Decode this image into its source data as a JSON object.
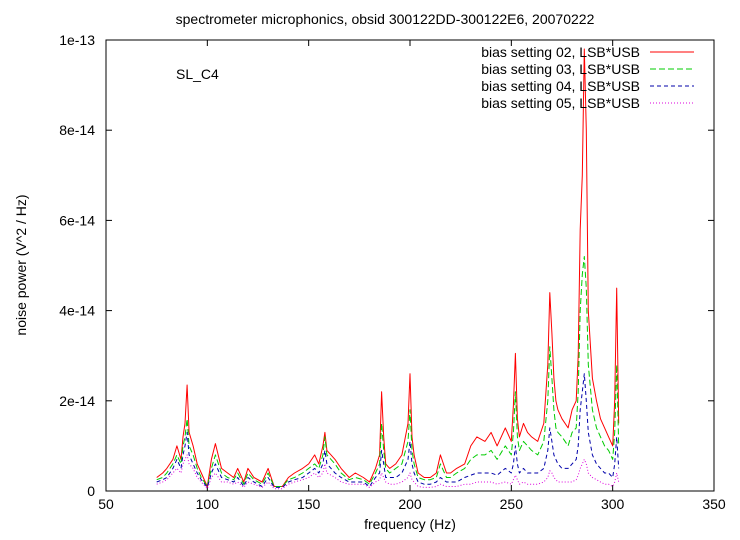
{
  "chart_data": {
    "type": "line",
    "title": "spectrometer microphonics, obsid 300122DD-300122E6, 20070222",
    "xlabel": "frequency (Hz)",
    "ylabel": "noise power (V^2 / Hz)",
    "annotation": "SL_C4",
    "xlim": [
      50,
      350
    ],
    "ylim": [
      0,
      1e-13
    ],
    "xticks": [
      50,
      100,
      150,
      200,
      250,
      300,
      350
    ],
    "xtick_labels": [
      "50",
      "100",
      "150",
      "200",
      "250",
      "300",
      "350"
    ],
    "yticks": [
      0,
      2e-14,
      4e-14,
      6e-14,
      8e-14,
      1e-13
    ],
    "ytick_labels": [
      "0",
      "2e-14",
      "4e-14",
      "6e-14",
      "8e-14",
      "1e-13"
    ],
    "grid": false,
    "legend_position": "top-right",
    "series": [
      {
        "name": "bias setting 02, LSB*USB",
        "color": "#ff0000",
        "dash": "solid",
        "x": [
          75,
          78,
          80,
          83,
          85,
          87,
          88,
          89,
          90,
          91,
          93,
          95,
          97,
          100,
          102,
          104,
          107,
          110,
          113,
          115,
          118,
          120,
          123,
          127,
          130,
          133,
          137,
          140,
          143,
          147,
          150,
          153,
          155,
          157,
          158,
          159,
          161,
          163,
          166,
          170,
          173,
          177,
          180,
          183,
          185,
          186,
          187,
          188,
          190,
          193,
          196,
          199,
          200,
          201,
          202,
          204,
          207,
          210,
          213,
          215,
          218,
          220,
          223,
          227,
          230,
          233,
          237,
          240,
          243,
          247,
          250,
          251,
          252,
          253,
          254,
          256,
          258,
          260,
          263,
          266,
          268,
          269,
          270,
          271,
          272,
          273,
          275,
          278,
          280,
          282,
          283,
          284,
          285,
          286,
          287,
          288,
          290,
          292,
          294,
          296,
          298,
          300,
          301,
          302,
          303
        ],
        "y": [
          3e-15,
          4e-15,
          5e-15,
          7e-15,
          1e-14,
          7e-15,
          1.2e-14,
          1.5e-14,
          2.35e-14,
          1.3e-14,
          1e-14,
          6e-15,
          4e-15,
          1e-15,
          7e-15,
          1.05e-14,
          5e-15,
          4e-15,
          3e-15,
          5e-15,
          2e-15,
          5e-15,
          3e-15,
          2e-15,
          5e-15,
          1e-15,
          1e-15,
          3e-15,
          4e-15,
          5e-15,
          6e-15,
          8e-15,
          6e-15,
          1e-14,
          1.3e-14,
          9e-15,
          8e-15,
          7e-15,
          5e-15,
          3e-15,
          4e-15,
          3e-15,
          2e-15,
          5e-15,
          8e-15,
          2.2e-14,
          1.2e-14,
          6e-15,
          5e-15,
          6e-15,
          8e-15,
          1.5e-14,
          2.6e-14,
          1.2e-14,
          8e-15,
          4e-15,
          3e-15,
          3e-15,
          4e-15,
          8e-15,
          4e-15,
          4e-15,
          5e-15,
          6e-15,
          1e-14,
          1.2e-14,
          1.1e-14,
          1.3e-14,
          1e-14,
          1.4e-14,
          1.1e-14,
          1.9e-14,
          3.05e-14,
          1.6e-14,
          1.2e-14,
          1.5e-14,
          1.3e-14,
          1.2e-14,
          1.1e-14,
          1.5e-14,
          2.8e-14,
          4.4e-14,
          3.5e-14,
          2.5e-14,
          2e-14,
          1.8e-14,
          1.6e-14,
          1.4e-14,
          1.8e-14,
          2e-14,
          3e-14,
          5.8e-14,
          7e-14,
          9.8e-14,
          8e-14,
          4e-14,
          2.5e-14,
          2e-14,
          1.6e-14,
          1.4e-14,
          1.2e-14,
          1e-14,
          2e-14,
          4.5e-14,
          1.5e-14
        ]
      },
      {
        "name": "bias setting 03, LSB*USB",
        "color": "#00cc00",
        "dash": "6,3",
        "x": [
          75,
          78,
          80,
          83,
          85,
          87,
          88,
          89,
          90,
          91,
          93,
          95,
          97,
          100,
          102,
          104,
          107,
          110,
          113,
          115,
          118,
          120,
          123,
          127,
          130,
          133,
          137,
          140,
          143,
          147,
          150,
          153,
          155,
          157,
          158,
          159,
          161,
          163,
          166,
          170,
          173,
          177,
          180,
          183,
          185,
          186,
          187,
          188,
          190,
          193,
          196,
          199,
          200,
          201,
          202,
          204,
          207,
          210,
          213,
          215,
          218,
          220,
          223,
          227,
          230,
          233,
          237,
          240,
          243,
          247,
          250,
          251,
          252,
          253,
          254,
          256,
          258,
          260,
          263,
          266,
          268,
          269,
          270,
          271,
          272,
          273,
          275,
          278,
          280,
          282,
          283,
          284,
          285,
          286,
          287,
          288,
          290,
          292,
          294,
          296,
          298,
          300,
          301,
          302,
          303
        ],
        "y": [
          2.5e-15,
          3e-15,
          4e-15,
          6e-15,
          8e-15,
          6e-15,
          1e-14,
          1.2e-14,
          1.6e-14,
          1e-14,
          8e-15,
          5e-15,
          3e-15,
          1e-15,
          5e-15,
          8e-15,
          4e-15,
          3e-15,
          2.5e-15,
          4e-15,
          1.5e-15,
          4e-15,
          2.5e-15,
          1.5e-15,
          4e-15,
          1e-15,
          1e-15,
          2.5e-15,
          3e-15,
          4e-15,
          5e-15,
          6e-15,
          5e-15,
          8e-15,
          1.2e-14,
          8e-15,
          7e-15,
          6e-15,
          4e-15,
          2.5e-15,
          3e-15,
          2.5e-15,
          1.5e-15,
          4e-15,
          6e-15,
          1.5e-14,
          9e-15,
          5e-15,
          4e-15,
          5e-15,
          6e-15,
          1.1e-14,
          1.8e-14,
          9e-15,
          6e-15,
          3e-15,
          2.5e-15,
          2.5e-15,
          3e-15,
          6e-15,
          3e-15,
          3e-15,
          4e-15,
          5e-15,
          7e-15,
          8e-15,
          8e-15,
          9e-15,
          7e-15,
          1e-14,
          8e-15,
          1.3e-14,
          2.2e-14,
          1.2e-14,
          9e-15,
          1.1e-14,
          1e-14,
          9e-15,
          8e-15,
          1.1e-14,
          2e-14,
          3.2e-14,
          2.5e-14,
          1.8e-14,
          1.4e-14,
          1.3e-14,
          1.2e-14,
          1e-14,
          1.3e-14,
          1.4e-14,
          2.2e-14,
          4e-14,
          4.8e-14,
          5.2e-14,
          4.5e-14,
          2.8e-14,
          1.8e-14,
          1.4e-14,
          1.2e-14,
          1e-14,
          9e-15,
          7e-15,
          1.3e-14,
          2.8e-14,
          1e-14
        ]
      },
      {
        "name": "bias setting 04, LSB*USB",
        "color": "#0000aa",
        "dash": "4,3",
        "x": [
          75,
          78,
          80,
          83,
          85,
          87,
          88,
          89,
          90,
          91,
          93,
          95,
          97,
          100,
          102,
          104,
          107,
          110,
          113,
          115,
          118,
          120,
          123,
          127,
          130,
          133,
          137,
          140,
          143,
          147,
          150,
          153,
          155,
          157,
          158,
          159,
          161,
          163,
          166,
          170,
          173,
          177,
          180,
          183,
          185,
          186,
          187,
          188,
          190,
          193,
          196,
          199,
          200,
          201,
          202,
          204,
          207,
          210,
          213,
          215,
          218,
          220,
          223,
          227,
          230,
          233,
          237,
          240,
          243,
          247,
          250,
          251,
          252,
          253,
          254,
          256,
          258,
          260,
          263,
          266,
          268,
          269,
          270,
          271,
          272,
          273,
          275,
          278,
          280,
          282,
          283,
          284,
          285,
          286,
          287,
          288,
          290,
          292,
          294,
          296,
          298,
          300,
          301,
          302,
          303
        ],
        "y": [
          2e-15,
          2.5e-15,
          3e-15,
          5e-15,
          7e-15,
          5e-15,
          8e-15,
          1e-14,
          1.3e-14,
          8e-15,
          6e-15,
          4e-15,
          2.5e-15,
          8e-16,
          4e-15,
          6e-15,
          3e-15,
          2.5e-15,
          2e-15,
          3e-15,
          1e-15,
          3e-15,
          2e-15,
          1e-15,
          3e-15,
          8e-16,
          8e-16,
          2e-15,
          2.5e-15,
          3e-15,
          4e-15,
          5e-15,
          4e-15,
          6e-15,
          9e-15,
          6e-15,
          5e-15,
          4e-15,
          3e-15,
          2e-15,
          2e-15,
          2e-15,
          1e-15,
          3e-15,
          4e-15,
          9e-15,
          6e-15,
          3e-15,
          3e-15,
          3e-15,
          4e-15,
          7e-15,
          1.1e-14,
          6e-15,
          4e-15,
          2e-15,
          1.5e-15,
          1.5e-15,
          2e-15,
          3e-15,
          2e-15,
          2e-15,
          2e-15,
          3e-15,
          3.5e-15,
          4e-15,
          4e-15,
          4e-15,
          3.5e-15,
          5e-15,
          4e-15,
          6e-15,
          1e-14,
          6e-15,
          4e-15,
          5e-15,
          4e-15,
          4e-15,
          4e-15,
          5e-15,
          9e-15,
          1.4e-14,
          1.1e-14,
          8e-15,
          7e-15,
          6e-15,
          5e-15,
          5e-15,
          6e-15,
          7e-15,
          1e-14,
          1.8e-14,
          2.2e-14,
          2.6e-14,
          2e-14,
          1.3e-14,
          8e-15,
          6e-15,
          5e-15,
          4e-15,
          4e-15,
          3e-15,
          6e-15,
          1.2e-14,
          5e-15
        ]
      },
      {
        "name": "bias setting 05, LSB*USB",
        "color": "#dd00dd",
        "dash": "1,2",
        "x": [
          75,
          78,
          80,
          83,
          85,
          87,
          88,
          89,
          90,
          91,
          93,
          95,
          97,
          100,
          102,
          104,
          107,
          110,
          113,
          115,
          118,
          120,
          123,
          127,
          130,
          133,
          137,
          140,
          143,
          147,
          150,
          153,
          155,
          157,
          158,
          159,
          161,
          163,
          166,
          170,
          173,
          177,
          180,
          183,
          185,
          186,
          187,
          188,
          190,
          193,
          196,
          199,
          200,
          201,
          202,
          204,
          207,
          210,
          213,
          215,
          218,
          220,
          223,
          227,
          230,
          233,
          237,
          240,
          243,
          247,
          250,
          251,
          252,
          253,
          254,
          256,
          258,
          260,
          263,
          266,
          268,
          269,
          270,
          271,
          272,
          273,
          275,
          278,
          280,
          282,
          283,
          284,
          285,
          286,
          287,
          288,
          290,
          292,
          294,
          296,
          298,
          300,
          301,
          302,
          303
        ],
        "y": [
          1.5e-15,
          2e-15,
          2.5e-15,
          4e-15,
          5e-15,
          4e-15,
          6e-15,
          7e-15,
          8e-15,
          6e-15,
          5e-15,
          3e-15,
          2e-15,
          5e-16,
          3e-15,
          4e-15,
          2e-15,
          2e-15,
          1.5e-15,
          2e-15,
          8e-16,
          2e-15,
          1.5e-15,
          8e-16,
          2e-15,
          5e-16,
          5e-16,
          1.5e-15,
          2e-15,
          2.5e-15,
          3e-15,
          4e-15,
          3e-15,
          4e-15,
          6e-15,
          4e-15,
          3.5e-15,
          3e-15,
          2e-15,
          1.5e-15,
          1.5e-15,
          1.5e-15,
          8e-16,
          2e-15,
          2.5e-15,
          4e-15,
          3e-15,
          2e-15,
          1.5e-15,
          1.5e-15,
          2e-15,
          3e-15,
          4e-15,
          2.5e-15,
          2e-15,
          1e-15,
          8e-16,
          8e-16,
          1e-15,
          1.5e-15,
          1e-15,
          1e-15,
          1e-15,
          1.5e-15,
          1.5e-15,
          2e-15,
          2e-15,
          2e-15,
          1.5e-15,
          2e-15,
          1.5e-15,
          2.5e-15,
          3.5e-15,
          2.5e-15,
          1.5e-15,
          2e-15,
          1.5e-15,
          1.5e-15,
          1.5e-15,
          2e-15,
          3e-15,
          4.5e-15,
          4e-15,
          3e-15,
          2.5e-15,
          2e-15,
          2e-15,
          2e-15,
          2e-15,
          2.5e-15,
          3.5e-15,
          5e-15,
          6e-15,
          7e-15,
          6e-15,
          4e-15,
          3e-15,
          2.5e-15,
          2e-15,
          1.5e-15,
          1.5e-15,
          1e-15,
          2e-15,
          4e-15,
          2e-15
        ]
      }
    ]
  }
}
